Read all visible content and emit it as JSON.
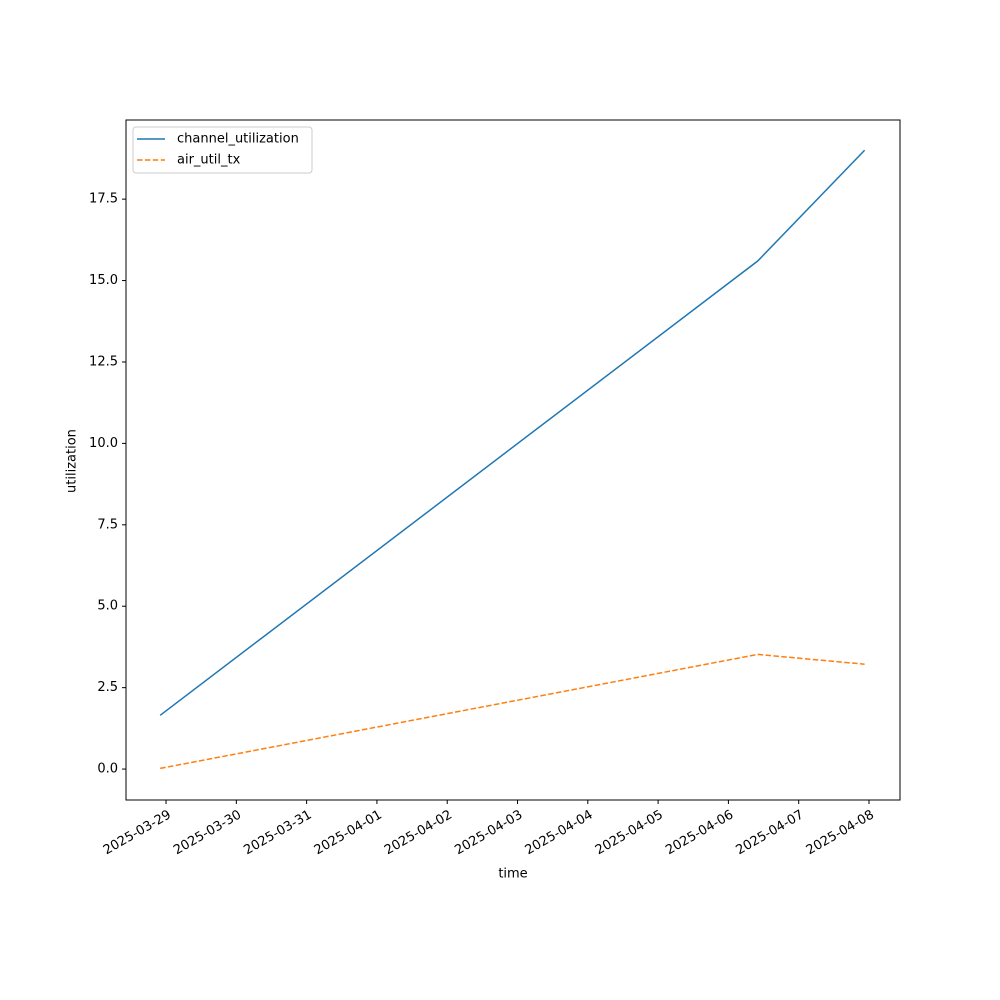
{
  "chart_data": {
    "type": "line",
    "x": [
      "2025-03-28T22:00",
      "2025-04-06T10:00",
      "2025-04-07T22:30"
    ],
    "series": [
      {
        "name": "channel_utilization",
        "color": "#1f77b4",
        "dash": "solid",
        "values": [
          1.65,
          15.6,
          19.0
        ]
      },
      {
        "name": "air_util_tx",
        "color": "#ff7f0e",
        "dash": "dashed",
        "values": [
          0.02,
          3.52,
          3.22
        ]
      }
    ],
    "xlabel": "time",
    "ylabel": "utilization",
    "xlim": [
      "2025-03-28T10:20",
      "2025-04-08T10:35"
    ],
    "xticks": [
      "2025-03-29",
      "2025-03-30",
      "2025-03-31",
      "2025-04-01",
      "2025-04-02",
      "2025-04-03",
      "2025-04-04",
      "2025-04-05",
      "2025-04-06",
      "2025-04-07",
      "2025-04-08"
    ],
    "ylim": [
      -0.95,
      19.93
    ],
    "yticks": [
      {
        "value": 0,
        "label": "0.0"
      },
      {
        "value": 2.5,
        "label": "2.5"
      },
      {
        "value": 5,
        "label": "5.0"
      },
      {
        "value": 7.5,
        "label": "7.5"
      },
      {
        "value": 10,
        "label": "10.0"
      },
      {
        "value": 12.5,
        "label": "12.5"
      },
      {
        "value": 15,
        "label": "15.0"
      },
      {
        "value": 17.5,
        "label": "17.5"
      }
    ],
    "grid": false,
    "legend": "upper left"
  }
}
